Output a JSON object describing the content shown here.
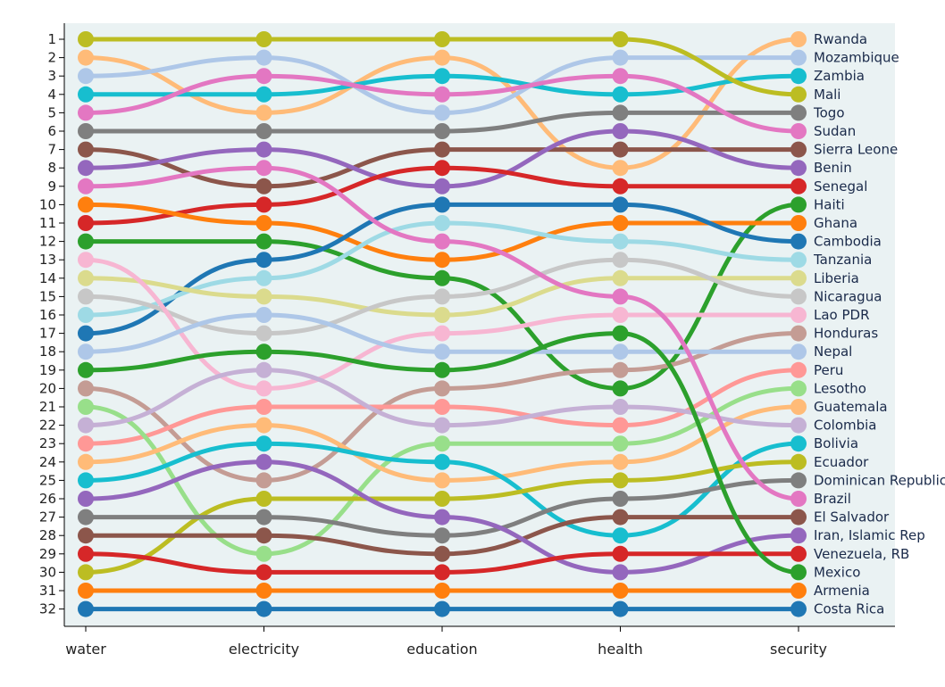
{
  "chart_data": {
    "type": "line",
    "title": "",
    "xlabel": "",
    "ylabel": "",
    "categories": [
      "water",
      "electricity",
      "education",
      "health",
      "security"
    ],
    "ranks": [
      1,
      2,
      3,
      4,
      5,
      6,
      7,
      8,
      9,
      10,
      11,
      12,
      13,
      14,
      15,
      16,
      17,
      18,
      19,
      20,
      21,
      22,
      23,
      24,
      25,
      26,
      27,
      28,
      29,
      30,
      31,
      32
    ],
    "ylim": [
      1,
      32
    ],
    "y_inverted": true,
    "legend": "right",
    "series": [
      {
        "name": "Rwanda",
        "color": "#ffbb78",
        "values": [
          2,
          5,
          2,
          8,
          1
        ]
      },
      {
        "name": "Mozambique",
        "color": "#aec7e8",
        "values": [
          3,
          2,
          5,
          2,
          2
        ]
      },
      {
        "name": "Zambia",
        "color": "#17becf",
        "values": [
          4,
          4,
          3,
          4,
          3
        ]
      },
      {
        "name": "Mali",
        "color": "#bcbd22",
        "values": [
          1,
          1,
          1,
          1,
          4
        ]
      },
      {
        "name": "Togo",
        "color": "#7f7f7f",
        "values": [
          6,
          6,
          6,
          5,
          5
        ]
      },
      {
        "name": "Sudan",
        "color": "#e377c2",
        "values": [
          5,
          3,
          4,
          3,
          6
        ]
      },
      {
        "name": "Sierra Leone",
        "color": "#8c564b",
        "values": [
          7,
          9,
          7,
          7,
          7
        ]
      },
      {
        "name": "Benin",
        "color": "#9467bd",
        "values": [
          8,
          7,
          9,
          6,
          8
        ]
      },
      {
        "name": "Senegal",
        "color": "#d62728",
        "values": [
          11,
          10,
          8,
          9,
          9
        ]
      },
      {
        "name": "Haiti",
        "color": "#2ca02c",
        "values": [
          12,
          12,
          14,
          20,
          10
        ]
      },
      {
        "name": "Ghana",
        "color": "#ff7f0e",
        "values": [
          10,
          11,
          13,
          11,
          11
        ]
      },
      {
        "name": "Cambodia",
        "color": "#1f77b4",
        "values": [
          17,
          13,
          10,
          10,
          12
        ]
      },
      {
        "name": "Tanzania",
        "color": "#9edae5",
        "values": [
          16,
          14,
          11,
          12,
          13
        ]
      },
      {
        "name": "Liberia",
        "color": "#dbdb8d",
        "values": [
          14,
          15,
          16,
          14,
          14
        ]
      },
      {
        "name": "Nicaragua",
        "color": "#c7c7c7",
        "values": [
          15,
          17,
          15,
          13,
          15
        ]
      },
      {
        "name": "Lao PDR",
        "color": "#f7b6d2",
        "values": [
          13,
          20,
          17,
          16,
          16
        ]
      },
      {
        "name": "Honduras",
        "color": "#c49c94",
        "values": [
          20,
          25,
          20,
          19,
          17
        ]
      },
      {
        "name": "Nepal",
        "color": "#aec7e8",
        "values": [
          18,
          16,
          18,
          18,
          18
        ]
      },
      {
        "name": "Peru",
        "color": "#ff9896",
        "values": [
          23,
          21,
          21,
          22,
          19
        ]
      },
      {
        "name": "Lesotho",
        "color": "#98df8a",
        "values": [
          21,
          29,
          23,
          23,
          20
        ]
      },
      {
        "name": "Guatemala",
        "color": "#ffbb78",
        "values": [
          24,
          22,
          25,
          24,
          21
        ]
      },
      {
        "name": "Colombia",
        "color": "#c5b0d5",
        "values": [
          22,
          19,
          22,
          21,
          22
        ]
      },
      {
        "name": "Bolivia",
        "color": "#17becf",
        "values": [
          25,
          23,
          24,
          28,
          23
        ]
      },
      {
        "name": "Ecuador",
        "color": "#bcbd22",
        "values": [
          30,
          26,
          26,
          25,
          24
        ]
      },
      {
        "name": "Dominican Republic",
        "color": "#7f7f7f",
        "values": [
          27,
          27,
          28,
          26,
          25
        ]
      },
      {
        "name": "Brazil",
        "color": "#e377c2",
        "values": [
          9,
          8,
          12,
          15,
          26
        ]
      },
      {
        "name": "El Salvador",
        "color": "#8c564b",
        "values": [
          28,
          28,
          29,
          27,
          27
        ]
      },
      {
        "name": "Iran, Islamic Rep",
        "color": "#9467bd",
        "values": [
          26,
          24,
          27,
          30,
          28
        ]
      },
      {
        "name": "Venezuela, RB",
        "color": "#d62728",
        "values": [
          29,
          30,
          30,
          29,
          29
        ]
      },
      {
        "name": "Mexico",
        "color": "#2ca02c",
        "values": [
          19,
          18,
          19,
          17,
          30
        ]
      },
      {
        "name": "Armenia",
        "color": "#ff7f0e",
        "values": [
          31,
          31,
          31,
          31,
          31
        ]
      },
      {
        "name": "Costa Rica",
        "color": "#1f77b4",
        "values": [
          32,
          32,
          32,
          32,
          32
        ]
      }
    ]
  }
}
